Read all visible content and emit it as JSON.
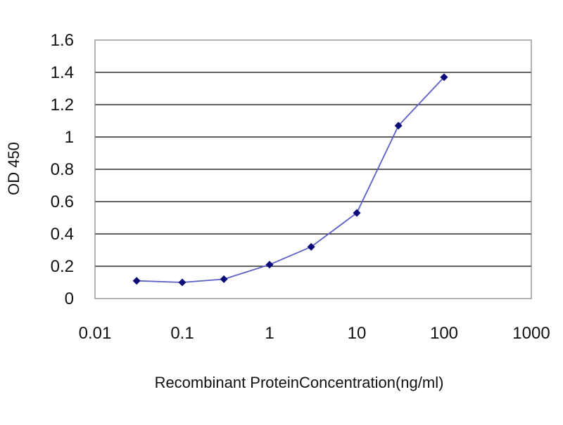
{
  "chart_data": {
    "type": "line",
    "title": "",
    "xlabel": "Recombinant ProteinConcentration(ng/ml)",
    "ylabel": "OD 450",
    "x_scale": "log",
    "xlim": [
      0.01,
      1000
    ],
    "ylim": [
      0,
      1.6
    ],
    "x_ticks": [
      "0.01",
      "0.1",
      "1",
      "10",
      "100",
      "1000"
    ],
    "y_ticks": [
      "0",
      "0.2",
      "0.4",
      "0.6",
      "0.8",
      "1",
      "1.2",
      "1.4",
      "1.6"
    ],
    "grid": "horizontal",
    "legend": "none",
    "series": [
      {
        "x": [
          0.03,
          0.1,
          0.3,
          1,
          3,
          10,
          30,
          100
        ],
        "y": [
          0.11,
          0.1,
          0.12,
          0.21,
          0.32,
          0.53,
          1.07,
          1.37
        ]
      }
    ],
    "colors": {
      "line": "#5a5fc8",
      "marker": "#0a0a78",
      "plot_background": "#ffffff",
      "grid": "#000000",
      "frame": "#808080"
    }
  }
}
